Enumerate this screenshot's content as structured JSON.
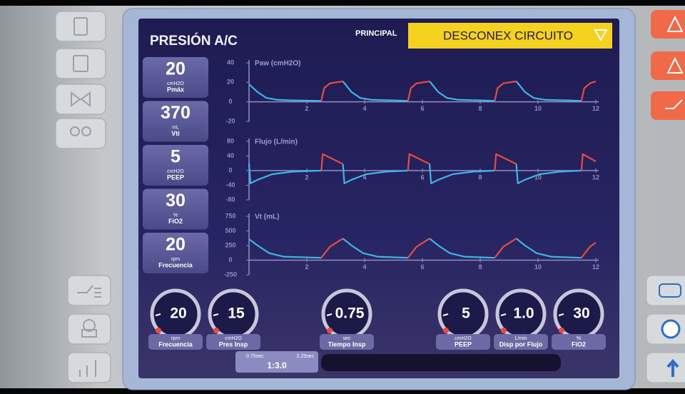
{
  "header": {
    "title": "PRESIÓN A/C",
    "tab": "PRINCIPAL",
    "alarm": "DESCONEX CIRCUITO"
  },
  "monitored": [
    {
      "value": "20",
      "unit": "cmH2O",
      "label": "Pmáx"
    },
    {
      "value": "370",
      "unit": "mL",
      "label": "Vti"
    },
    {
      "value": "5",
      "unit": "cmH2O",
      "label": "PEEP"
    },
    {
      "value": "30",
      "unit": "%",
      "label": "FiO2"
    },
    {
      "value": "20",
      "unit": "rpm",
      "label": "Frecuencia"
    }
  ],
  "waveforms": [
    {
      "title": "Paw (cmH2O)",
      "xlim": [
        0,
        12
      ],
      "xticks": [
        2,
        4,
        6,
        8,
        10,
        12
      ],
      "ylim": [
        -20,
        40
      ],
      "yticks": [
        40,
        20,
        0,
        -20
      ],
      "segments": [
        {
          "color": "#3fb4e6",
          "x": [
            0,
            0.3,
            0.6,
            1,
            1.5,
            2.5
          ],
          "values": [
            18,
            10,
            4,
            2,
            1.5,
            1
          ]
        },
        {
          "color": "#ec4b3c",
          "x": [
            2.5,
            2.6,
            2.8,
            3.25
          ],
          "values": [
            1,
            14,
            19,
            21
          ]
        },
        {
          "color": "#3fb4e6",
          "x": [
            3.25,
            3.55,
            3.85,
            4.25,
            5,
            5.5
          ],
          "values": [
            21,
            10,
            4,
            2,
            1.5,
            1
          ]
        },
        {
          "color": "#ec4b3c",
          "x": [
            5.5,
            5.6,
            5.8,
            6.25
          ],
          "values": [
            1,
            14,
            19,
            21
          ]
        },
        {
          "color": "#3fb4e6",
          "x": [
            6.25,
            6.55,
            6.85,
            7.25,
            8,
            8.5
          ],
          "values": [
            21,
            10,
            4,
            2,
            1.5,
            1
          ]
        },
        {
          "color": "#ec4b3c",
          "x": [
            8.5,
            8.6,
            8.8,
            9.25
          ],
          "values": [
            1,
            14,
            19,
            21
          ]
        },
        {
          "color": "#3fb4e6",
          "x": [
            9.25,
            9.55,
            9.85,
            10.25,
            11,
            11.5
          ],
          "values": [
            21,
            10,
            4,
            2,
            1.5,
            1
          ]
        },
        {
          "color": "#ec4b3c",
          "x": [
            11.5,
            11.6,
            11.8,
            12
          ],
          "values": [
            1,
            14,
            19,
            21
          ]
        }
      ]
    },
    {
      "title": "Flujo (L/min)",
      "xlim": [
        0,
        12
      ],
      "xticks": [
        2,
        4,
        6,
        8,
        10,
        12
      ],
      "ylim": [
        -80,
        80
      ],
      "yticks": [
        80,
        40,
        0,
        -40,
        -80
      ],
      "segments": [
        {
          "color": "#3fb4e6",
          "x": [
            0,
            0.05,
            0.3,
            0.8,
            1.5,
            2.5
          ],
          "values": [
            20,
            -35,
            -25,
            -10,
            -3,
            0
          ]
        },
        {
          "color": "#ec4b3c",
          "x": [
            2.5,
            2.55,
            3.25
          ],
          "values": [
            0,
            45,
            18
          ]
        },
        {
          "color": "#3fb4e6",
          "x": [
            3.25,
            3.3,
            3.55,
            4.05,
            4.75,
            5.5
          ],
          "values": [
            18,
            -35,
            -25,
            -10,
            -3,
            0
          ]
        },
        {
          "color": "#ec4b3c",
          "x": [
            5.5,
            5.55,
            6.25
          ],
          "values": [
            0,
            45,
            18
          ]
        },
        {
          "color": "#3fb4e6",
          "x": [
            6.25,
            6.3,
            6.55,
            7.05,
            7.75,
            8.5
          ],
          "values": [
            18,
            -35,
            -25,
            -10,
            -3,
            0
          ]
        },
        {
          "color": "#ec4b3c",
          "x": [
            8.5,
            8.55,
            9.25
          ],
          "values": [
            0,
            45,
            18
          ]
        },
        {
          "color": "#3fb4e6",
          "x": [
            9.25,
            9.3,
            9.55,
            10.05,
            10.75,
            11.5
          ],
          "values": [
            18,
            -35,
            -25,
            -10,
            -3,
            0
          ]
        },
        {
          "color": "#ec4b3c",
          "x": [
            11.5,
            11.55,
            12
          ],
          "values": [
            0,
            45,
            25
          ]
        }
      ]
    },
    {
      "title": "Vt (mL)",
      "xlim": [
        0,
        12
      ],
      "xticks": [
        2,
        4,
        6,
        8,
        10,
        12
      ],
      "ylim": [
        -250,
        750
      ],
      "yticks": [
        750,
        500,
        250,
        0,
        -250
      ],
      "segments": [
        {
          "color": "#3fb4e6",
          "x": [
            0,
            0.3,
            0.7,
            1.2,
            2.5
          ],
          "values": [
            360,
            250,
            120,
            60,
            40
          ]
        },
        {
          "color": "#ec4b3c",
          "x": [
            2.5,
            2.8,
            3.25
          ],
          "values": [
            40,
            230,
            370
          ]
        },
        {
          "color": "#3fb4e6",
          "x": [
            3.25,
            3.55,
            3.95,
            4.45,
            5.5
          ],
          "values": [
            370,
            250,
            120,
            60,
            40
          ]
        },
        {
          "color": "#ec4b3c",
          "x": [
            5.5,
            5.8,
            6.25
          ],
          "values": [
            40,
            230,
            370
          ]
        },
        {
          "color": "#3fb4e6",
          "x": [
            6.25,
            6.55,
            6.95,
            7.45,
            8.5
          ],
          "values": [
            370,
            250,
            120,
            60,
            40
          ]
        },
        {
          "color": "#ec4b3c",
          "x": [
            8.5,
            8.8,
            9.25
          ],
          "values": [
            40,
            230,
            370
          ]
        },
        {
          "color": "#3fb4e6",
          "x": [
            9.25,
            9.55,
            9.95,
            10.45,
            11.5
          ],
          "values": [
            370,
            250,
            120,
            60,
            40
          ]
        },
        {
          "color": "#ec4b3c",
          "x": [
            11.5,
            11.8,
            12
          ],
          "values": [
            40,
            230,
            300
          ]
        }
      ]
    }
  ],
  "settings": [
    {
      "value": "20",
      "unit": "rpm",
      "label": "Frecuencia"
    },
    {
      "value": "15",
      "unit": "cmH2O",
      "label": "Pres Insp"
    },
    {
      "value": "0.75",
      "unit": "sec",
      "label": "Tiempo Insp"
    },
    {
      "value": "5",
      "unit": "cmH2O",
      "label": "PEEP"
    },
    {
      "value": "1.0",
      "unit": "L/min",
      "label": "Disp por Flujo"
    },
    {
      "value": "30",
      "unit": "%",
      "label": "FiO2"
    }
  ],
  "ie_ratio": {
    "insp_time": "0.75sec",
    "exp_time": "2.25sec",
    "ratio": "1:3.0"
  }
}
